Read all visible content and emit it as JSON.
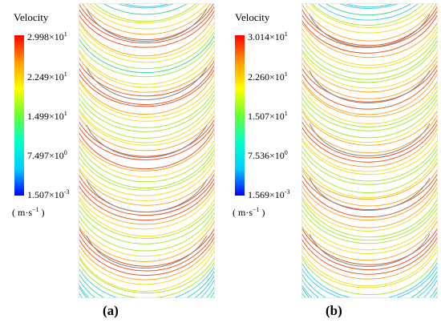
{
  "panels": [
    {
      "caption": "(a)",
      "legend": {
        "title": "Velocity",
        "ticks": [
          {
            "mant": "2.998",
            "exp": "1"
          },
          {
            "mant": "2.249",
            "exp": "1"
          },
          {
            "mant": "1.499",
            "exp": "1"
          },
          {
            "mant": "7.497",
            "exp": "0"
          },
          {
            "mant": "1.507",
            "exp": "-3"
          }
        ],
        "unit": "( m·s",
        "unit_exp": "−1",
        "unit_close": " )"
      }
    },
    {
      "caption": "(b)",
      "legend": {
        "title": "Velocity",
        "ticks": [
          {
            "mant": "3.014",
            "exp": "1"
          },
          {
            "mant": "2.260",
            "exp": "1"
          },
          {
            "mant": "1.507",
            "exp": "1"
          },
          {
            "mant": "7.536",
            "exp": "0"
          },
          {
            "mant": "1.569",
            "exp": "-3"
          }
        ],
        "unit": "( m·s",
        "unit_exp": "−1",
        "unit_close": " )"
      }
    }
  ],
  "times_sign": "×10",
  "colormap": [
    "#ff0000",
    "#ff9900",
    "#ffff00",
    "#66ff33",
    "#00ffcc",
    "#00ccff",
    "#0000ff"
  ]
}
